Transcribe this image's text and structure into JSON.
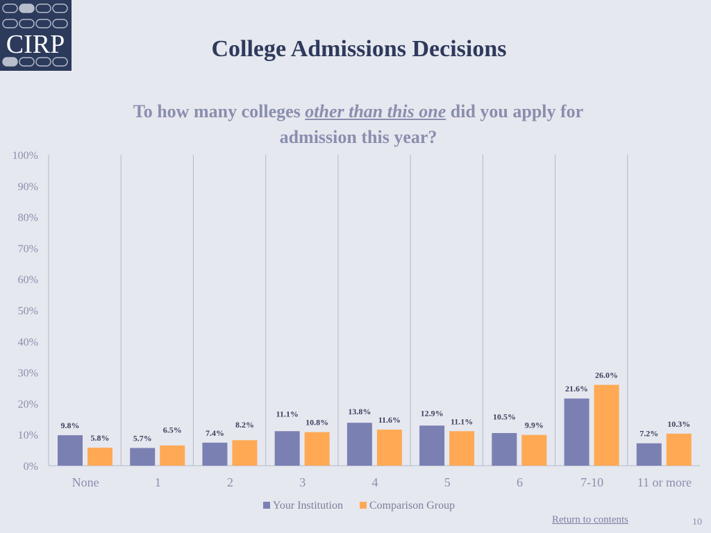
{
  "logo": {
    "text": "CIRP"
  },
  "title": "College Admissions Decisions",
  "subtitle": {
    "part1": "To how many colleges ",
    "emphasis": "other than this one",
    "part2": " did you apply for admission this year?"
  },
  "colors": {
    "background": "#e6e8ef",
    "your_institution": "#7a80b2",
    "comparison_group": "#ffa955",
    "title": "#2e3a5c",
    "logo_bg": "#2c3a5c"
  },
  "chart_data": {
    "type": "bar",
    "categories": [
      "None",
      "1",
      "2",
      "3",
      "4",
      "5",
      "6",
      "7-10",
      "11 or more"
    ],
    "series": [
      {
        "name": "Your Institution",
        "values": [
          9.8,
          5.7,
          7.4,
          11.1,
          13.8,
          12.9,
          10.5,
          21.6,
          7.2
        ],
        "labels": [
          "9.8%",
          "5.7%",
          "7.4%",
          "11.1%",
          "13.8%",
          "12.9%",
          "10.5%",
          "21.6%",
          "7.2%"
        ]
      },
      {
        "name": "Comparison Group",
        "values": [
          5.8,
          6.5,
          8.2,
          10.8,
          11.6,
          11.1,
          9.9,
          26.0,
          10.3
        ],
        "labels": [
          "5.8%",
          "6.5%",
          "8.2%",
          "10.8%",
          "11.6%",
          "11.1%",
          "9.9%",
          "26.0%",
          "10.3%"
        ]
      }
    ],
    "y_ticks": [
      "0%",
      "10%",
      "20%",
      "30%",
      "40%",
      "50%",
      "60%",
      "70%",
      "80%",
      "90%",
      "100%"
    ],
    "ylim": [
      0,
      100
    ],
    "legend_position": "bottom"
  },
  "footer": {
    "return_link": "Return to contents",
    "page_number": "10"
  }
}
